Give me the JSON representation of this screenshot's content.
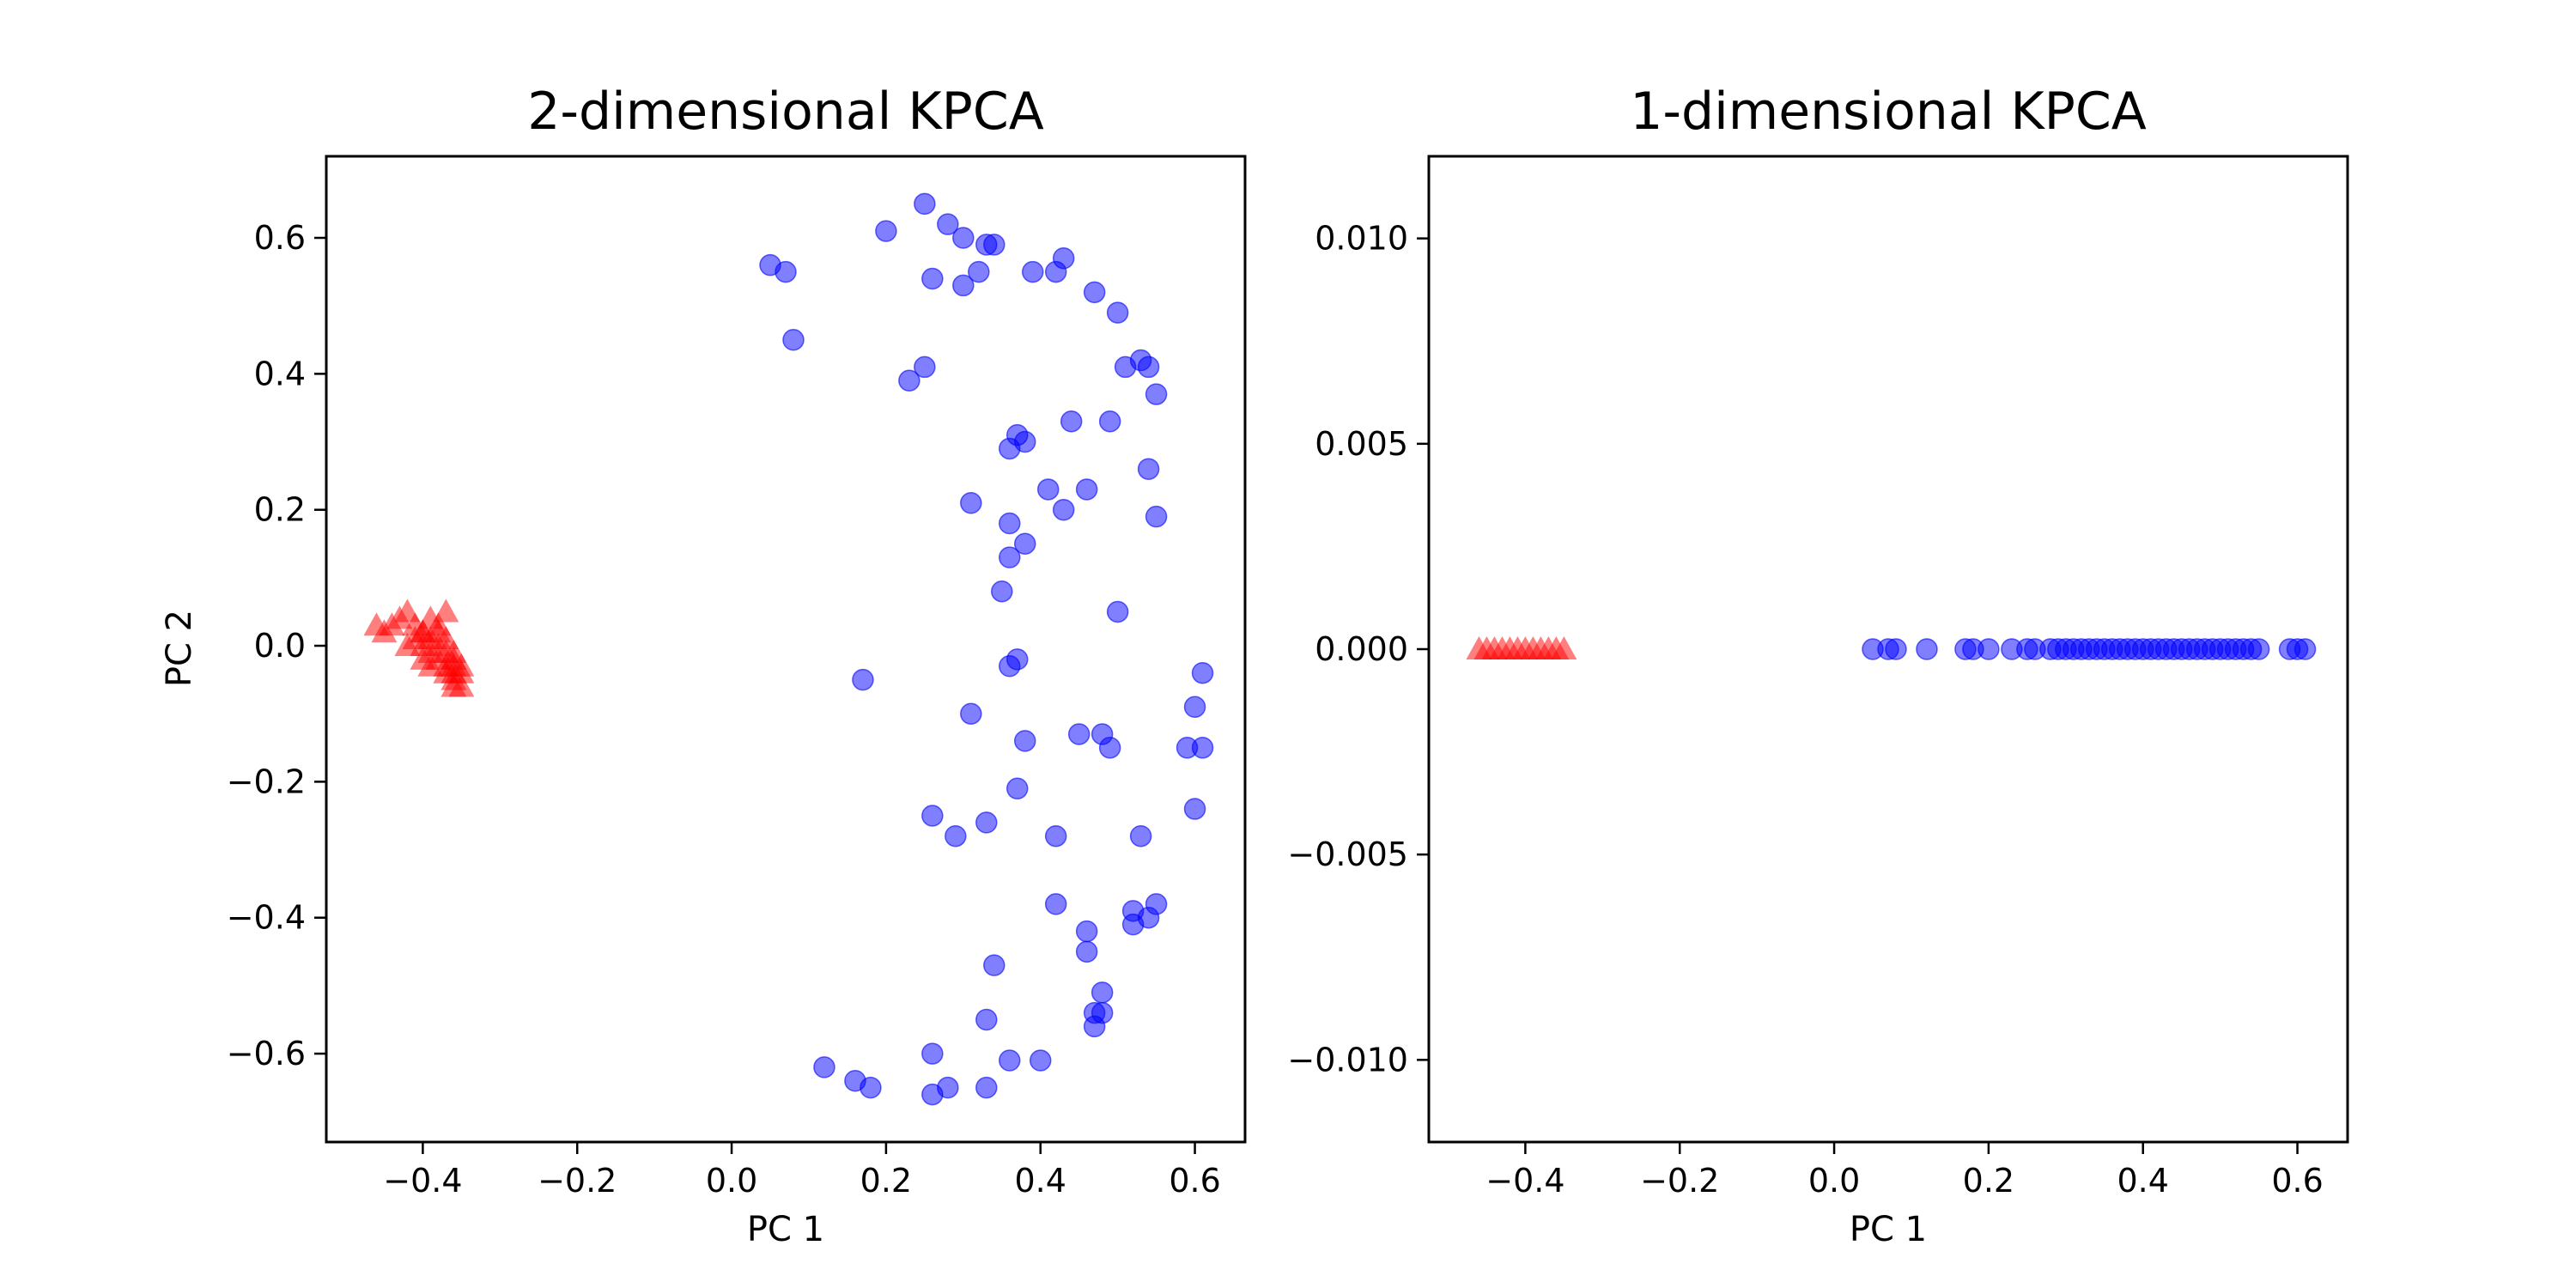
{
  "colors": {
    "class0": "#0000ff",
    "class1": "#ff0000",
    "axes": "#000000",
    "background": "#ffffff"
  },
  "chart_data": [
    {
      "type": "scatter",
      "title": "2-dimensional KPCA",
      "xlabel": "PC 1",
      "ylabel": "PC 2",
      "xlim": [
        -0.525,
        0.665
      ],
      "ylim": [
        -0.73,
        0.72
      ],
      "xticks": [
        -0.4,
        -0.2,
        0.0,
        0.2,
        0.4,
        0.6
      ],
      "xtick_labels": [
        "−0.4",
        "−0.2",
        "0.0",
        "0.2",
        "0.4",
        "0.6"
      ],
      "yticks": [
        -0.6,
        -0.4,
        -0.2,
        0.0,
        0.2,
        0.4,
        0.6
      ],
      "ytick_labels": [
        "−0.6",
        "−0.4",
        "−0.2",
        "0.0",
        "0.2",
        "0.4",
        "0.6"
      ],
      "grid": false,
      "legend": "none",
      "series": [
        {
          "marker": "circle",
          "color": "#0000ff",
          "alpha": 0.5,
          "x": [
            0.25,
            0.2,
            0.28,
            0.3,
            0.33,
            0.34,
            0.43,
            0.39,
            0.42,
            0.05,
            0.07,
            0.26,
            0.3,
            0.32,
            0.47,
            0.5,
            0.08,
            0.25,
            0.23,
            0.53,
            0.54,
            0.51,
            0.55,
            0.37,
            0.38,
            0.36,
            0.44,
            0.49,
            0.54,
            0.41,
            0.46,
            0.31,
            0.43,
            0.36,
            0.55,
            0.38,
            0.36,
            0.35,
            0.5,
            0.17,
            0.36,
            0.37,
            0.61,
            0.6,
            0.31,
            0.38,
            0.45,
            0.48,
            0.49,
            0.61,
            0.59,
            0.37,
            0.26,
            0.33,
            0.29,
            0.42,
            0.53,
            0.6,
            0.42,
            0.52,
            0.55,
            0.52,
            0.54,
            0.46,
            0.46,
            0.34,
            0.48,
            0.33,
            0.47,
            0.48,
            0.47,
            0.26,
            0.36,
            0.4,
            0.12,
            0.16,
            0.18,
            0.28,
            0.26,
            0.33
          ],
          "y": [
            0.65,
            0.61,
            0.62,
            0.6,
            0.59,
            0.59,
            0.57,
            0.55,
            0.55,
            0.56,
            0.55,
            0.54,
            0.53,
            0.55,
            0.52,
            0.49,
            0.45,
            0.41,
            0.39,
            0.42,
            0.41,
            0.41,
            0.37,
            0.31,
            0.3,
            0.29,
            0.33,
            0.33,
            0.26,
            0.23,
            0.23,
            0.21,
            0.2,
            0.18,
            0.19,
            0.15,
            0.13,
            0.08,
            0.05,
            -0.05,
            -0.03,
            -0.02,
            -0.04,
            -0.09,
            -0.1,
            -0.14,
            -0.13,
            -0.13,
            -0.15,
            -0.15,
            -0.15,
            -0.21,
            -0.25,
            -0.26,
            -0.28,
            -0.28,
            -0.28,
            -0.24,
            -0.38,
            -0.39,
            -0.38,
            -0.41,
            -0.4,
            -0.42,
            -0.45,
            -0.47,
            -0.51,
            -0.55,
            -0.54,
            -0.54,
            -0.56,
            -0.6,
            -0.61,
            -0.61,
            -0.62,
            -0.64,
            -0.65,
            -0.65,
            -0.66,
            -0.65
          ]
        },
        {
          "marker": "triangle",
          "color": "#ff0000",
          "alpha": 0.5,
          "x": [
            -0.46,
            -0.45,
            -0.44,
            -0.43,
            -0.42,
            -0.41,
            -0.4,
            -0.4,
            -0.39,
            -0.39,
            -0.38,
            -0.38,
            -0.37,
            -0.37,
            -0.37,
            -0.36,
            -0.36,
            -0.36,
            -0.35,
            -0.35,
            -0.41,
            -0.39,
            -0.37,
            -0.38,
            -0.36,
            -0.4,
            -0.42,
            -0.38,
            -0.35,
            -0.39,
            -0.37,
            -0.36,
            -0.36,
            -0.4
          ],
          "y": [
            0.03,
            0.02,
            0.03,
            0.04,
            0.05,
            0.03,
            0.02,
            0.0,
            0.01,
            -0.01,
            0.02,
            -0.02,
            -0.03,
            -0.01,
            0.05,
            -0.04,
            -0.05,
            -0.02,
            -0.03,
            -0.06,
            0.01,
            -0.03,
            -0.04,
            0.03,
            -0.01,
            -0.02,
            0.0,
            0.0,
            -0.04,
            0.04,
            0.01,
            -0.03,
            -0.06,
            0.02
          ]
        }
      ]
    },
    {
      "type": "scatter",
      "title": "1-dimensional KPCA",
      "xlabel": "PC 1",
      "ylabel": "",
      "xlim": [
        -0.525,
        0.665
      ],
      "ylim": [
        -0.012,
        0.012
      ],
      "xticks": [
        -0.4,
        -0.2,
        0.0,
        0.2,
        0.4,
        0.6
      ],
      "xtick_labels": [
        "−0.4",
        "−0.2",
        "0.0",
        "0.2",
        "0.4",
        "0.6"
      ],
      "yticks": [
        -0.01,
        -0.005,
        0.0,
        0.005,
        0.01
      ],
      "ytick_labels": [
        "−0.010",
        "−0.005",
        "0.000",
        "0.005",
        "0.010"
      ],
      "grid": false,
      "legend": "none",
      "series": [
        {
          "marker": "circle",
          "color": "#0000ff",
          "alpha": 0.5,
          "x": [
            0.05,
            0.07,
            0.08,
            0.12,
            0.17,
            0.18,
            0.2,
            0.23,
            0.25,
            0.26,
            0.28,
            0.29,
            0.3,
            0.31,
            0.32,
            0.33,
            0.34,
            0.35,
            0.36,
            0.37,
            0.38,
            0.39,
            0.4,
            0.41,
            0.42,
            0.43,
            0.44,
            0.45,
            0.46,
            0.47,
            0.48,
            0.49,
            0.5,
            0.51,
            0.52,
            0.53,
            0.54,
            0.55,
            0.59,
            0.6,
            0.61
          ],
          "y": [
            0,
            0,
            0,
            0,
            0,
            0,
            0,
            0,
            0,
            0,
            0,
            0,
            0,
            0,
            0,
            0,
            0,
            0,
            0,
            0,
            0,
            0,
            0,
            0,
            0,
            0,
            0,
            0,
            0,
            0,
            0,
            0,
            0,
            0,
            0,
            0,
            0,
            0,
            0,
            0,
            0
          ]
        },
        {
          "marker": "triangle",
          "color": "#ff0000",
          "alpha": 0.5,
          "x": [
            -0.46,
            -0.45,
            -0.44,
            -0.43,
            -0.42,
            -0.41,
            -0.4,
            -0.39,
            -0.38,
            -0.37,
            -0.36,
            -0.35
          ],
          "y": [
            0,
            0,
            0,
            0,
            0,
            0,
            0,
            0,
            0,
            0,
            0,
            0
          ]
        }
      ]
    }
  ]
}
